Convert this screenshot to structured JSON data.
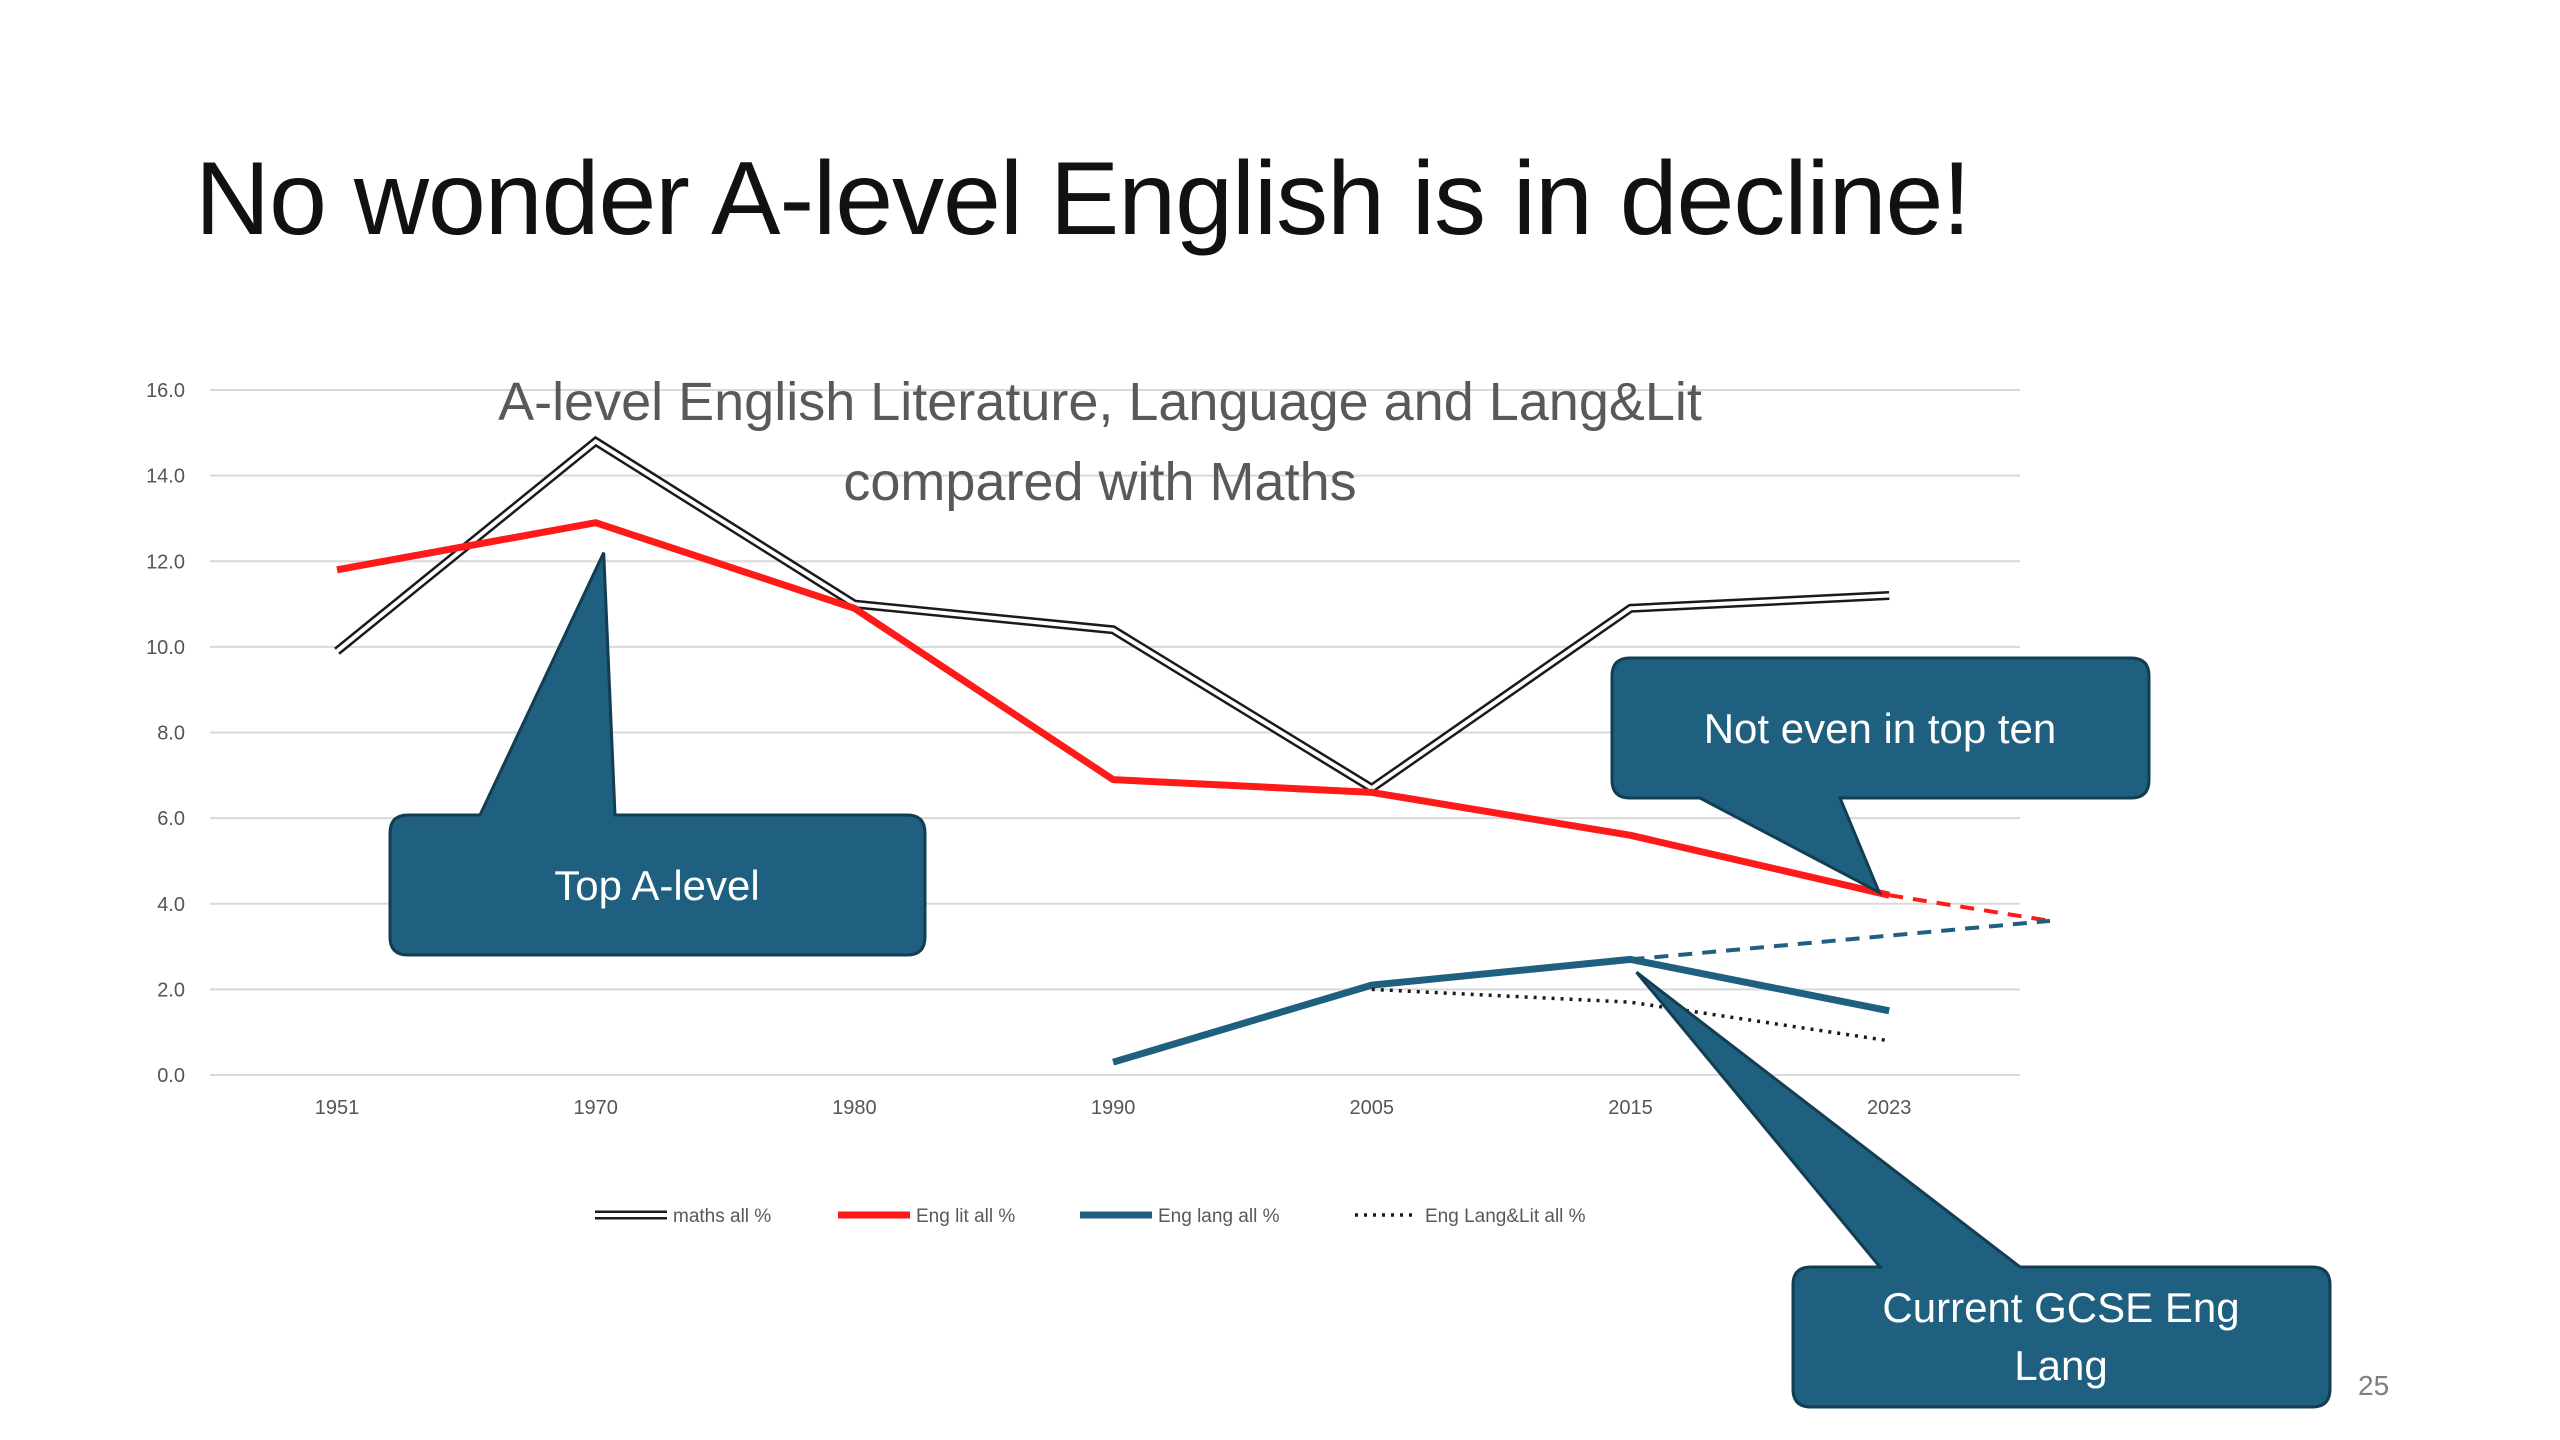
{
  "slide": {
    "title": "No wonder A-level English is in decline!",
    "page_number": "25"
  },
  "colors": {
    "maths": "#1a1a1a",
    "eng_lit": "#ff1a1a",
    "eng_lang": "#1f5f7f",
    "eng_lang_lit": "#1a1a1a",
    "callout_fill": "#1f5f7f",
    "callout_stroke": "#123d52"
  },
  "chart_data": {
    "type": "line",
    "title_lines": [
      "A-level English Literature, Language and Lang&Lit",
      "compared with Maths"
    ],
    "xlabel": "",
    "ylabel": "",
    "categories": [
      "1951",
      "1970",
      "1980",
      "1990",
      "2005",
      "2015",
      "2023"
    ],
    "ylim": [
      0,
      16
    ],
    "yticks": [
      "0.0",
      "2.0",
      "4.0",
      "6.0",
      "8.0",
      "10.0",
      "12.0",
      "14.0",
      "16.0"
    ],
    "grid": true,
    "legend_position": "bottom",
    "series": [
      {
        "name": "maths all %",
        "key": "maths",
        "style": "double",
        "values": [
          9.9,
          14.8,
          11.0,
          10.4,
          6.7,
          10.9,
          11.2
        ]
      },
      {
        "name": "Eng lit all %",
        "key": "eng_lit",
        "style": "solid",
        "values": [
          11.8,
          12.9,
          10.9,
          6.9,
          6.6,
          5.6,
          4.2
        ]
      },
      {
        "name": "Eng lang all %",
        "key": "eng_lang",
        "style": "solid",
        "values": [
          null,
          null,
          null,
          0.3,
          2.1,
          2.7,
          1.5
        ]
      },
      {
        "name": "Eng Lang&Lit all %",
        "key": "eng_lang_lit",
        "style": "dotted",
        "values": [
          null,
          null,
          null,
          null,
          2.0,
          1.7,
          0.8
        ]
      }
    ],
    "projections": [
      {
        "series": "Eng lit all %",
        "from_category": "2023",
        "from_value": 4.2,
        "to_value": 3.6,
        "style": "dashed"
      },
      {
        "series": "Eng lang all %",
        "from_category": "2015",
        "from_value": 2.7,
        "to_value": 3.6,
        "style": "dashed"
      }
    ],
    "annotations": [
      {
        "text": "Top A-level",
        "points_to_category": "1970",
        "points_to_value": 12.2
      },
      {
        "text": "Not even in top ten",
        "points_to_category": "2023",
        "points_to_value": 4.5
      },
      {
        "text": "Current GCSE Eng Lang",
        "points_to_category": "2015",
        "points_to_value": 2.4
      }
    ]
  }
}
